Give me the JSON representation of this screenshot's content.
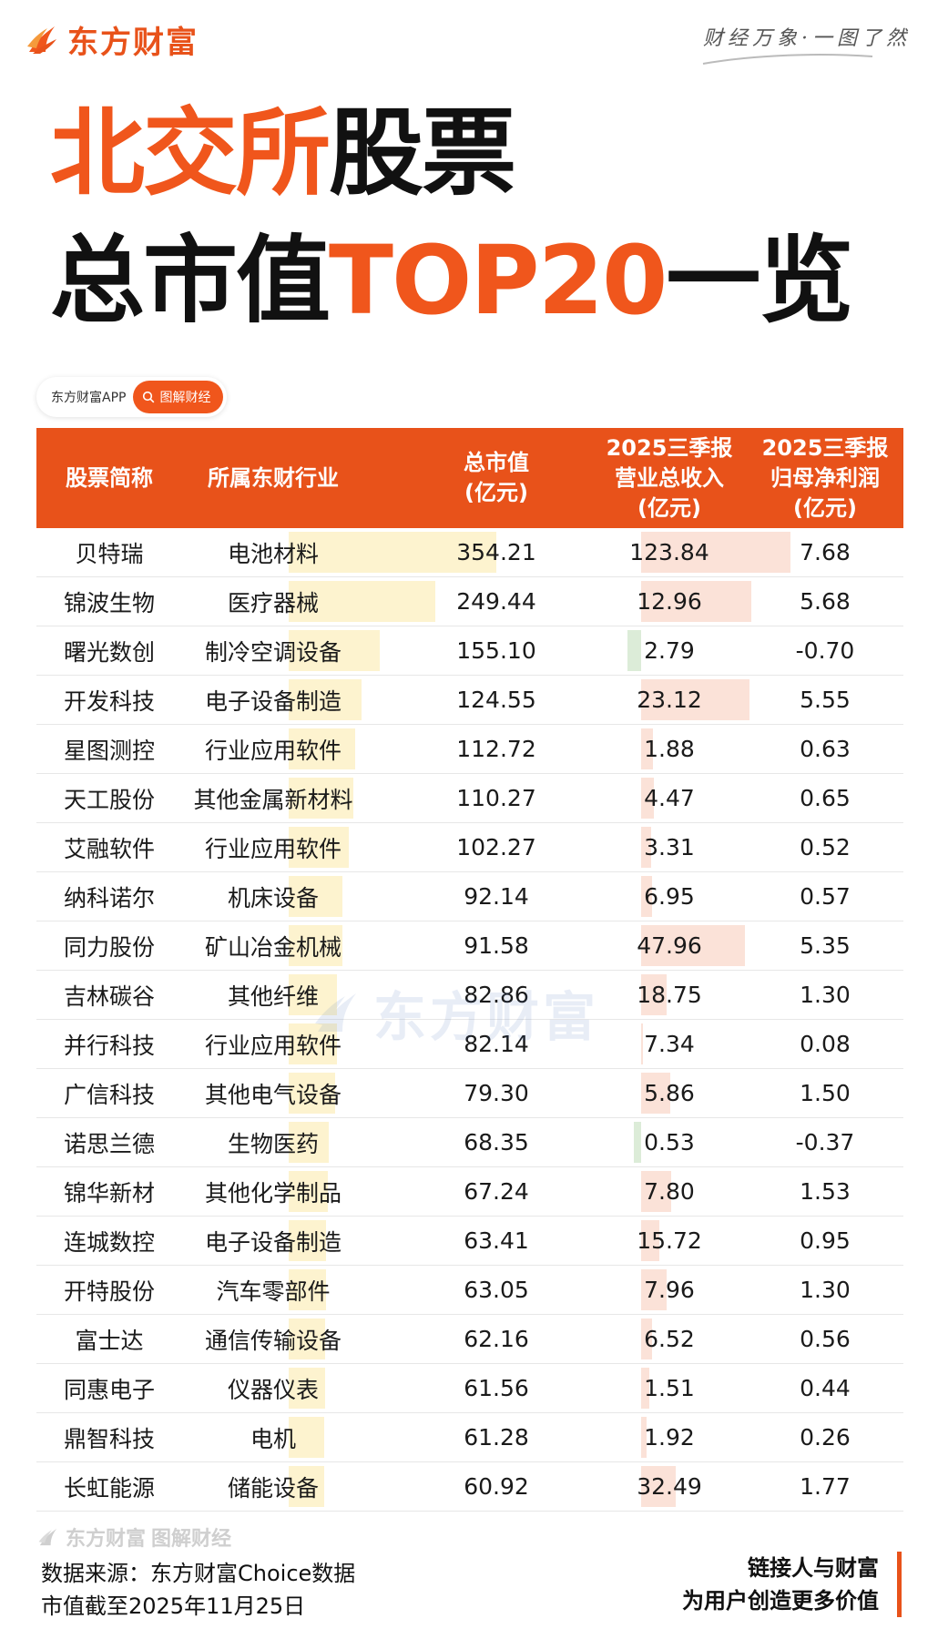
{
  "brand": {
    "logo_text": "东方财富",
    "slogan": "财经万象·一图了然"
  },
  "title": {
    "line1_orange": "北交所",
    "line1_black": "股票",
    "line2_black_a": "总市值",
    "line2_orange": "TOP20",
    "line2_black_b": "一览"
  },
  "badge": {
    "app": "东方财富APP",
    "pill": "图解财经"
  },
  "table": {
    "headers": {
      "name": "股票简称",
      "industry": "所属东财行业",
      "mcap": "总市值\n(亿元)",
      "revenue": "2025三季报\n营业总收入\n(亿元)",
      "profit": "2025三季报\n归母净利润\n(亿元)"
    },
    "rows": [
      {
        "name": "贝特瑞",
        "industry": "电池材料",
        "mcap": "354.21",
        "revenue": "123.84",
        "profit": "7.68"
      },
      {
        "name": "锦波生物",
        "industry": "医疗器械",
        "mcap": "249.44",
        "revenue": "12.96",
        "profit": "5.68"
      },
      {
        "name": "曙光数创",
        "industry": "制冷空调设备",
        "mcap": "155.10",
        "revenue": "2.79",
        "profit": "-0.70"
      },
      {
        "name": "开发科技",
        "industry": "电子设备制造",
        "mcap": "124.55",
        "revenue": "23.12",
        "profit": "5.55"
      },
      {
        "name": "星图测控",
        "industry": "行业应用软件",
        "mcap": "112.72",
        "revenue": "1.88",
        "profit": "0.63"
      },
      {
        "name": "天工股份",
        "industry": "其他金属新材料",
        "mcap": "110.27",
        "revenue": "4.47",
        "profit": "0.65"
      },
      {
        "name": "艾融软件",
        "industry": "行业应用软件",
        "mcap": "102.27",
        "revenue": "3.31",
        "profit": "0.52"
      },
      {
        "name": "纳科诺尔",
        "industry": "机床设备",
        "mcap": "92.14",
        "revenue": "6.95",
        "profit": "0.57"
      },
      {
        "name": "同力股份",
        "industry": "矿山冶金机械",
        "mcap": "91.58",
        "revenue": "47.96",
        "profit": "5.35"
      },
      {
        "name": "吉林碳谷",
        "industry": "其他纤维",
        "mcap": "82.86",
        "revenue": "18.75",
        "profit": "1.30"
      },
      {
        "name": "并行科技",
        "industry": "行业应用软件",
        "mcap": "82.14",
        "revenue": "7.34",
        "profit": "0.08"
      },
      {
        "name": "广信科技",
        "industry": "其他电气设备",
        "mcap": "79.30",
        "revenue": "5.86",
        "profit": "1.50"
      },
      {
        "name": "诺思兰德",
        "industry": "生物医药",
        "mcap": "68.35",
        "revenue": "0.53",
        "profit": "-0.37"
      },
      {
        "name": "锦华新材",
        "industry": "其他化学制品",
        "mcap": "67.24",
        "revenue": "7.80",
        "profit": "1.53"
      },
      {
        "name": "连城数控",
        "industry": "电子设备制造",
        "mcap": "63.41",
        "revenue": "15.72",
        "profit": "0.95"
      },
      {
        "name": "开特股份",
        "industry": "汽车零部件",
        "mcap": "63.05",
        "revenue": "7.96",
        "profit": "1.30"
      },
      {
        "name": "富士达",
        "industry": "通信传输设备",
        "mcap": "62.16",
        "revenue": "6.52",
        "profit": "0.56"
      },
      {
        "name": "同惠电子",
        "industry": "仪器仪表",
        "mcap": "61.56",
        "revenue": "1.51",
        "profit": "0.44"
      },
      {
        "name": "鼎智科技",
        "industry": "电机",
        "mcap": "61.28",
        "revenue": "1.92",
        "profit": "0.26"
      },
      {
        "name": "长虹能源",
        "industry": "储能设备",
        "mcap": "60.92",
        "revenue": "32.49",
        "profit": "1.77"
      }
    ]
  },
  "watermark": "东方财富",
  "footer": {
    "brand": "东方财富",
    "brand_sub": "图解财经",
    "source": "数据来源：东方财富Choice数据",
    "date": "市值截至2025年11月25日",
    "tagline1": "链接人与财富",
    "tagline2": "为用户创造更多价值"
  },
  "colors": {
    "accent": "#e8521a",
    "title_orange": "#f0561c",
    "mcap_bar": "#fdf3cf",
    "profit_bar": "#fbe2d8",
    "loss_bar": "#dcecd8"
  }
}
